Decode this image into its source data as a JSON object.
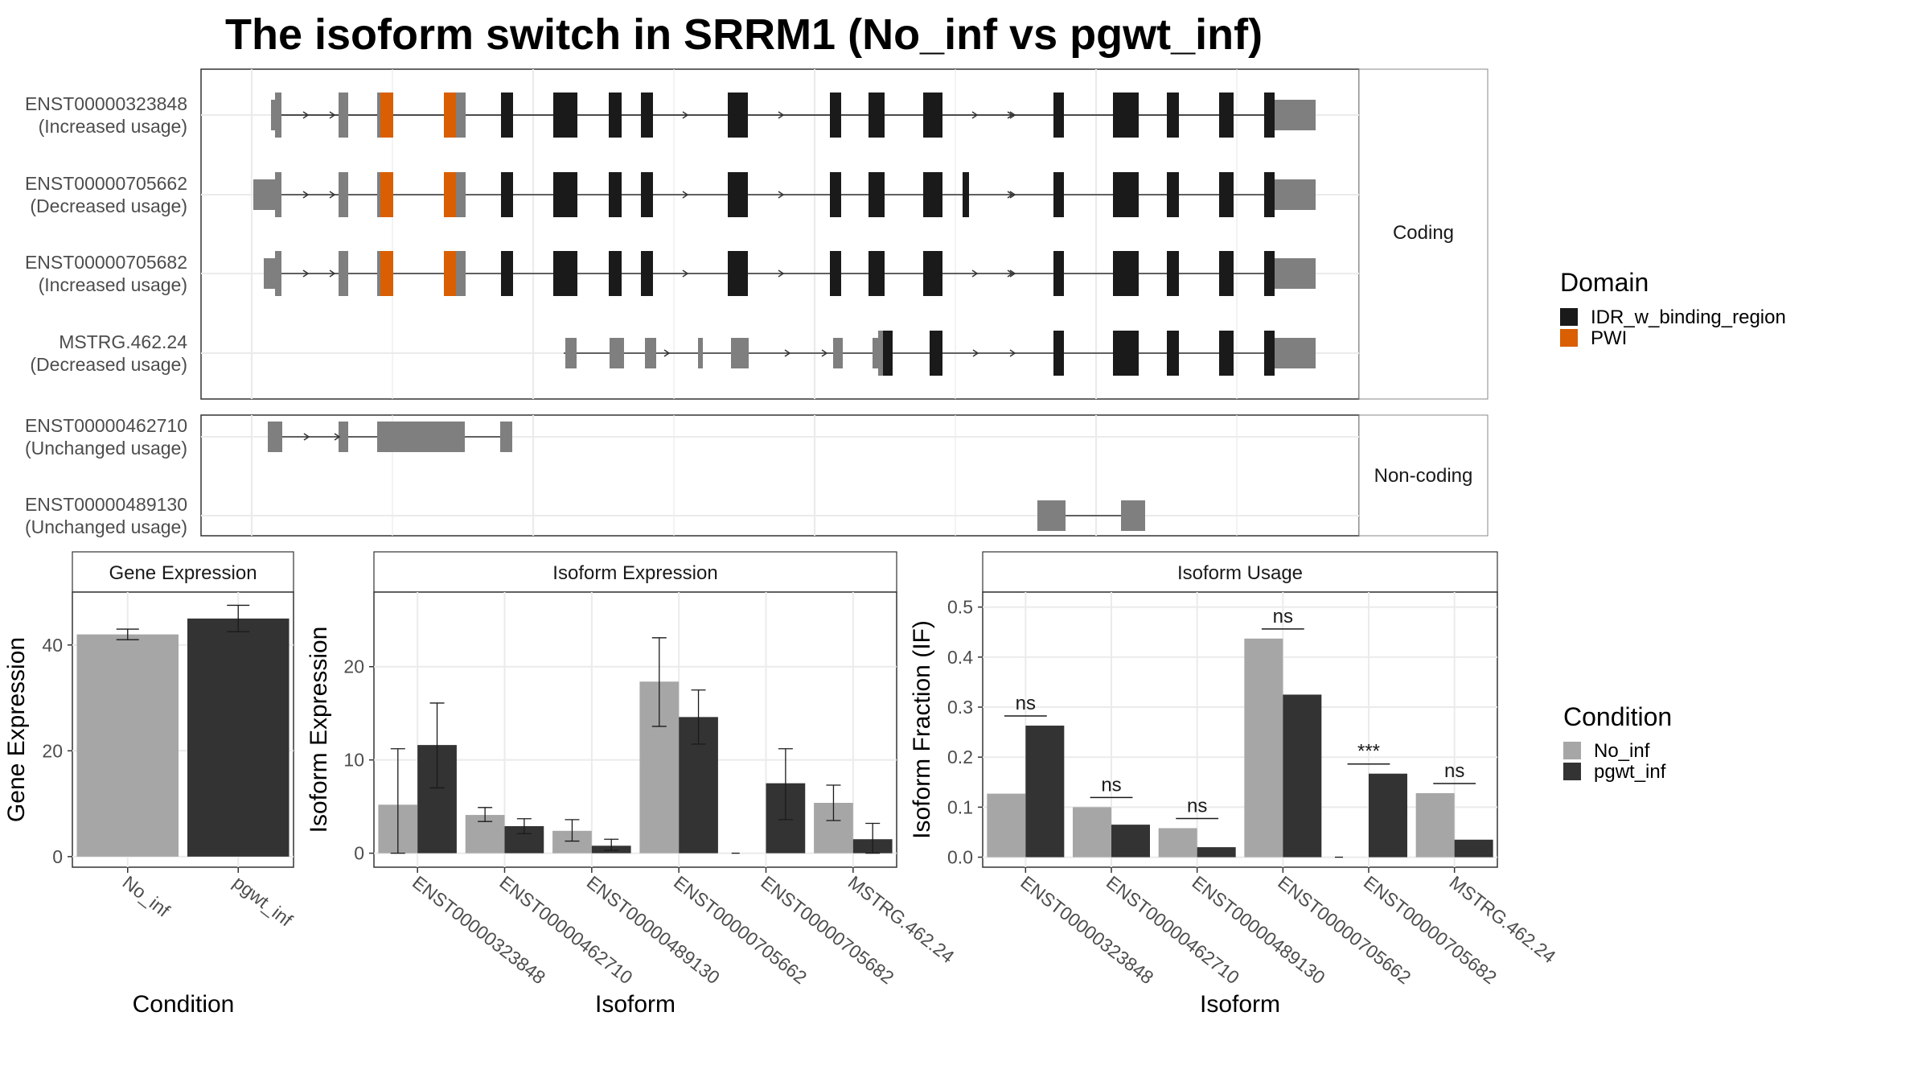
{
  "title": "The isoform switch in SRRM1 (No_inf vs pgwt_inf)",
  "domain_legend": {
    "title": "Domain",
    "items": [
      {
        "label": "IDR_w_binding_region",
        "color": "#1a1a1a"
      },
      {
        "label": "PWI",
        "color": "#d95f02"
      }
    ]
  },
  "condition_legend": {
    "title": "Condition",
    "items": [
      {
        "label": "No_inf",
        "color": "#a6a6a6"
      },
      {
        "label": "pgwt_inf",
        "color": "#333333"
      }
    ]
  },
  "structure": {
    "coding_strip": "Coding",
    "noncoding_strip": "Non-coding",
    "coding_transcripts": [
      {
        "id": "ENST00000323848",
        "usage": "(Increased usage)"
      },
      {
        "id": "ENST00000705662",
        "usage": "(Decreased usage)"
      },
      {
        "id": "ENST00000705682",
        "usage": "(Increased usage)"
      },
      {
        "id": "MSTRG.462.24",
        "usage": "(Decreased usage)"
      }
    ],
    "noncoding_transcripts": [
      {
        "id": "ENST00000462710",
        "usage": "(Unchanged usage)"
      },
      {
        "id": "ENST00000489130",
        "usage": "(Unchanged usage)"
      }
    ]
  },
  "chart_data": [
    {
      "type": "bar",
      "title": "Gene Expression",
      "xlabel": "Condition",
      "ylabel": "Gene Expression",
      "categories": [
        "No_inf",
        "pgwt_inf"
      ],
      "values": [
        42,
        45
      ],
      "error": [
        [
          41,
          43
        ],
        [
          42.5,
          47.5
        ]
      ],
      "ylim": [
        -2,
        50
      ],
      "yticks": [
        0,
        20,
        40
      ]
    },
    {
      "type": "bar",
      "title": "Isoform Expression",
      "xlabel": "Isoform",
      "ylabel": "Isoform Expression",
      "categories": [
        "ENST00000323848",
        "ENST00000462710",
        "ENST00000489130",
        "ENST00000705662",
        "ENST00000705682",
        "MSTRG.462.24"
      ],
      "series": [
        {
          "name": "No_inf",
          "values": [
            5.2,
            4.1,
            2.4,
            18.4,
            0.0,
            5.4
          ],
          "error": [
            [
              0,
              11.2
            ],
            [
              3.4,
              4.9
            ],
            [
              1.3,
              3.6
            ],
            [
              13.6,
              23.1
            ],
            [
              0,
              0
            ],
            [
              3.5,
              7.3
            ]
          ]
        },
        {
          "name": "pgwt_inf",
          "values": [
            11.6,
            2.9,
            0.8,
            14.6,
            7.5,
            1.5
          ],
          "error": [
            [
              7.0,
              16.1
            ],
            [
              2.1,
              3.7
            ],
            [
              0.3,
              1.5
            ],
            [
              11.7,
              17.5
            ],
            [
              3.6,
              11.2
            ],
            [
              0,
              3.2
            ]
          ]
        }
      ],
      "ylim": [
        -1.5,
        28
      ],
      "yticks": [
        0,
        10,
        20
      ]
    },
    {
      "type": "bar",
      "title": "Isoform Usage",
      "xlabel": "Isoform",
      "ylabel": "Isoform Fraction (IF)",
      "categories": [
        "ENST00000323848",
        "ENST00000462710",
        "ENST00000489130",
        "ENST00000705662",
        "ENST00000705682",
        "MSTRG.462.24"
      ],
      "series": [
        {
          "name": "No_inf",
          "values": [
            0.127,
            0.1,
            0.058,
            0.437,
            0.0,
            0.128
          ]
        },
        {
          "name": "pgwt_inf",
          "values": [
            0.263,
            0.065,
            0.02,
            0.325,
            0.167,
            0.035
          ]
        }
      ],
      "significance": [
        "ns",
        "ns",
        "ns",
        "ns",
        "***",
        "ns"
      ],
      "ylim": [
        -0.02,
        0.53
      ],
      "yticks": [
        0.0,
        0.1,
        0.2,
        0.3,
        0.4,
        0.5
      ],
      "ytick_labels": [
        "0.0",
        "0.1",
        "0.2",
        "0.3",
        "0.4",
        "0.5"
      ]
    }
  ]
}
